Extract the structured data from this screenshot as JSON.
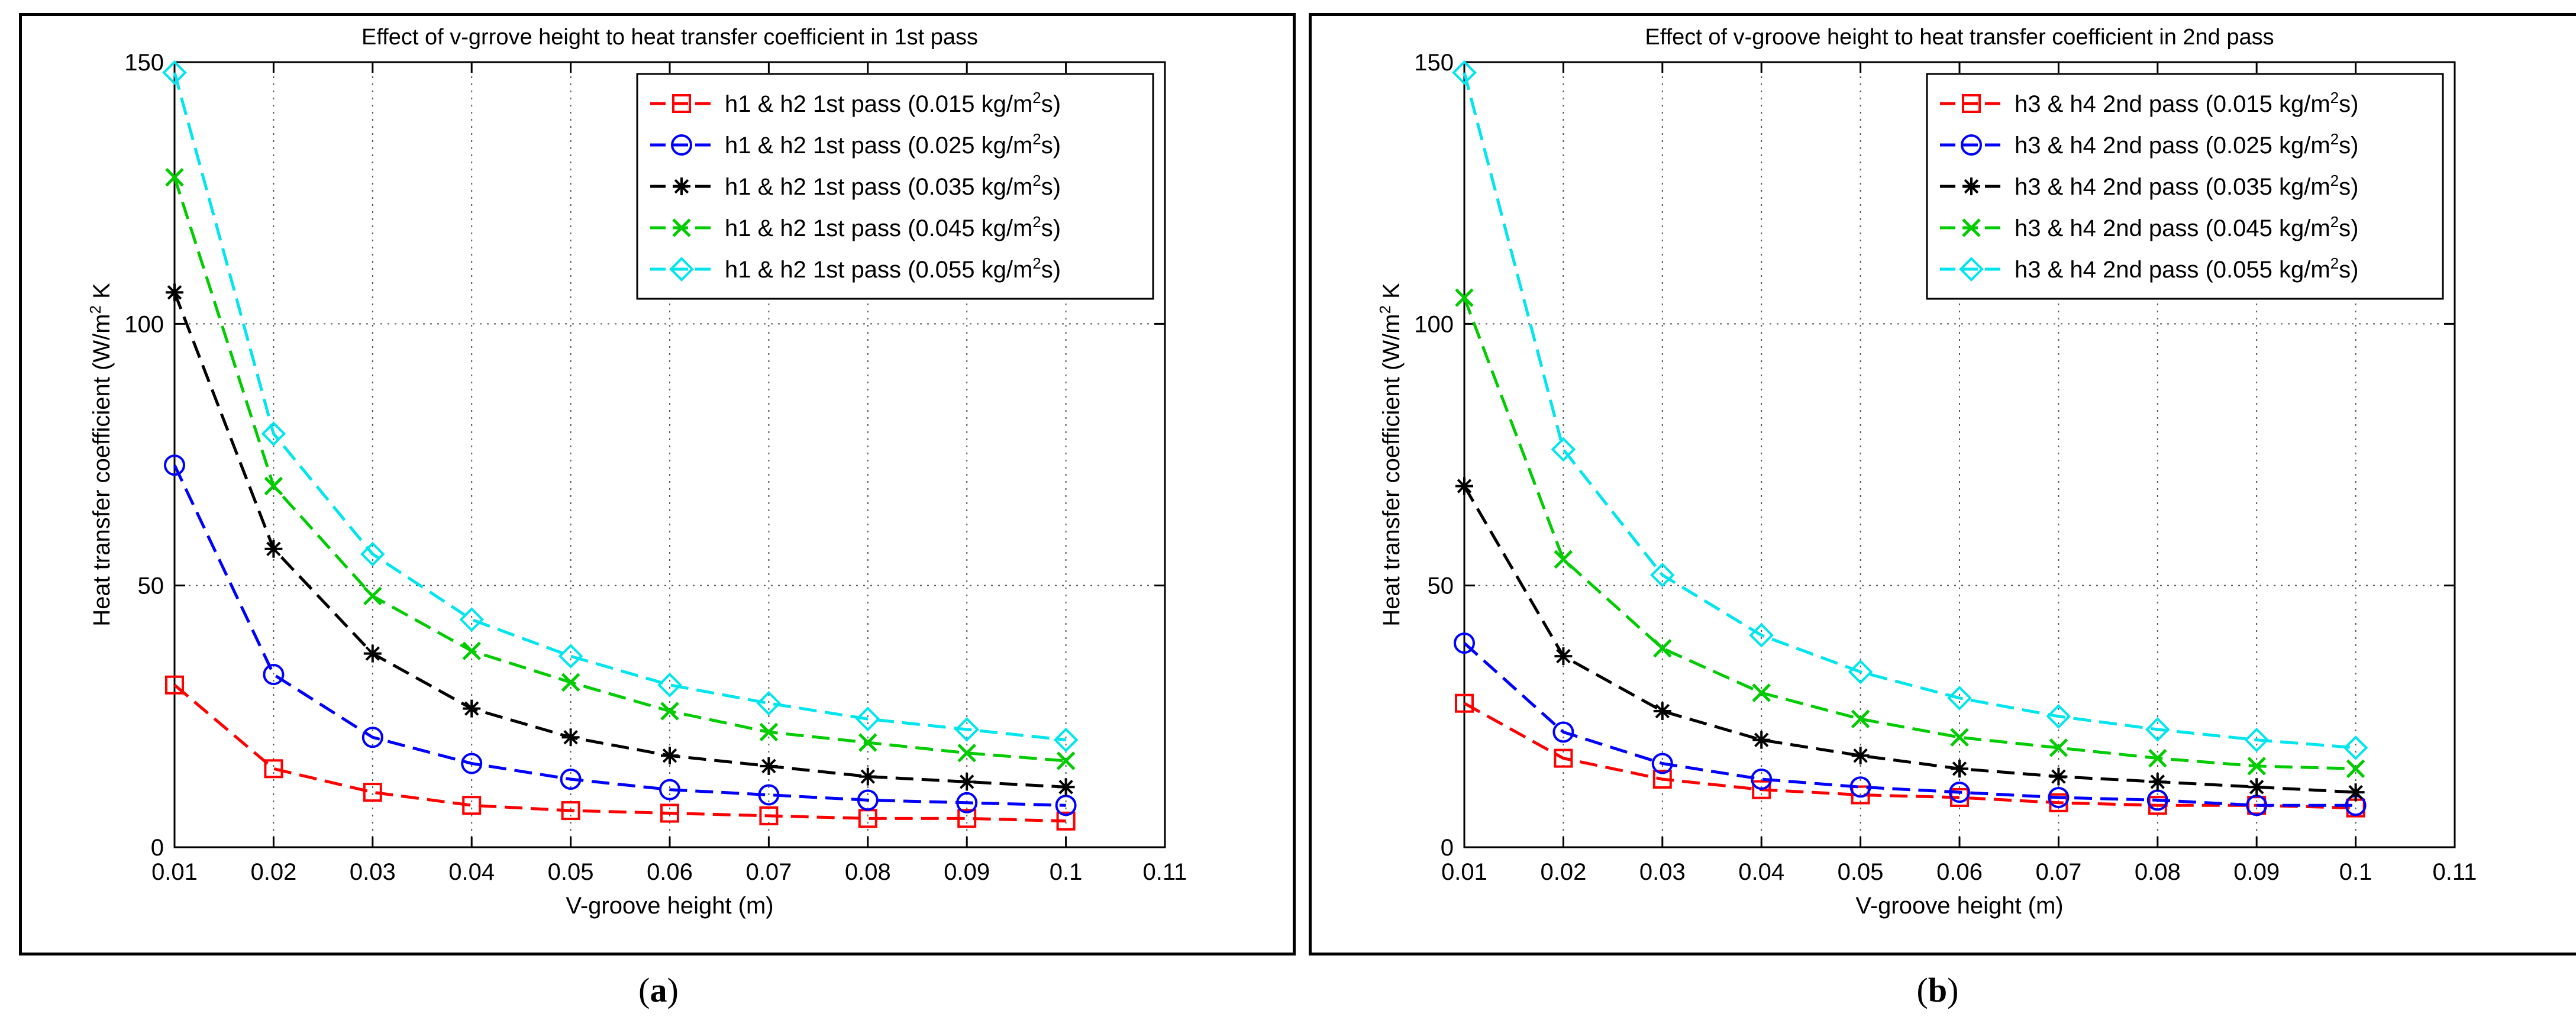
{
  "chart_data": [
    {
      "type": "line",
      "panel_label": "a",
      "title": "Effect of v-grrove height to heat transfer coefficient in 1st pass",
      "xlabel": "V-groove height (m)",
      "ylabel": "Heat transfer coefficient (W/m",
      "ylabel_sup": "2",
      "ylabel_tail": " K",
      "xlim": [
        0.01,
        0.11
      ],
      "ylim": [
        0,
        150
      ],
      "xticks": [
        "0.01",
        "0.02",
        "0.03",
        "0.04",
        "0.05",
        "0.06",
        "0.07",
        "0.08",
        "0.09",
        "0.1",
        "0.11"
      ],
      "yticks": [
        "0",
        "50",
        "100",
        "150"
      ],
      "grid": true,
      "legend_position": "top-right",
      "x": [
        0.01,
        0.02,
        0.03,
        0.04,
        0.05,
        0.06,
        0.07,
        0.08,
        0.09,
        0.1
      ],
      "series": [
        {
          "name": "h1 & h2 1st pass (0.015 kg/m",
          "name_sup": "2",
          "name_tail": "s)",
          "color": "#ff0000",
          "marker": "square",
          "values": [
            31,
            15,
            10.5,
            8,
            7,
            6.5,
            6,
            5.5,
            5.5,
            5
          ]
        },
        {
          "name": "h1 & h2 1st pass (0.025 kg/m",
          "name_sup": "2",
          "name_tail": "s)",
          "color": "#0000ff",
          "marker": "circle",
          "values": [
            73,
            33,
            21,
            16,
            13,
            11,
            10,
            9,
            8.5,
            8
          ]
        },
        {
          "name": "h1 & h2 1st pass (0.035 kg/m",
          "name_sup": "2",
          "name_tail": "s)",
          "color": "#000000",
          "marker": "star",
          "values": [
            106,
            57,
            37,
            26.5,
            21,
            17.5,
            15.5,
            13.5,
            12.5,
            11.5
          ]
        },
        {
          "name": "h1 & h2 1st pass (0.045 kg/m",
          "name_sup": "2",
          "name_tail": "s)",
          "color": "#00cc00",
          "marker": "x",
          "values": [
            128,
            69,
            48,
            37.5,
            31.5,
            26,
            22,
            20,
            18,
            16.5
          ]
        },
        {
          "name": "h1 & h2 1st pass (0.055 kg/m",
          "name_sup": "2",
          "name_tail": "s)",
          "color": "#00e5ee",
          "marker": "diamond",
          "values": [
            148,
            79,
            56,
            43.5,
            36.5,
            31,
            27.5,
            24.5,
            22.5,
            20.5
          ]
        }
      ]
    },
    {
      "type": "line",
      "panel_label": "b",
      "title": "Effect of v-groove height to heat transfer coefficient in 2nd pass",
      "xlabel": "V-groove height (m)",
      "ylabel": "Heat transfer coefficient (W/m",
      "ylabel_sup": "2",
      "ylabel_tail": " K",
      "xlim": [
        0.01,
        0.11
      ],
      "ylim": [
        0,
        150
      ],
      "xticks": [
        "0.01",
        "0.02",
        "0.03",
        "0.04",
        "0.05",
        "0.06",
        "0.07",
        "0.08",
        "0.09",
        "0.1",
        "0.11"
      ],
      "yticks": [
        "0",
        "50",
        "100",
        "150"
      ],
      "grid": true,
      "legend_position": "top-right",
      "x": [
        0.01,
        0.02,
        0.03,
        0.04,
        0.05,
        0.06,
        0.07,
        0.08,
        0.09,
        0.1
      ],
      "series": [
        {
          "name": "h3 & h4 2nd pass (0.015 kg/m",
          "name_sup": "2",
          "name_tail": "s)",
          "color": "#ff0000",
          "marker": "square",
          "values": [
            27.5,
            17,
            13,
            11,
            10,
            9.5,
            8.5,
            8,
            8,
            7.5
          ]
        },
        {
          "name": "h3 & h4 2nd pass (0.025 kg/m",
          "name_sup": "2",
          "name_tail": "s)",
          "color": "#0000ff",
          "marker": "circle",
          "values": [
            39,
            22,
            16,
            13,
            11.5,
            10.5,
            9.5,
            9,
            8,
            8
          ]
        },
        {
          "name": "h3 & h4 2nd pass (0.035 kg/m",
          "name_sup": "2",
          "name_tail": "s)",
          "color": "#000000",
          "marker": "star",
          "values": [
            69,
            36.5,
            26,
            20.5,
            17.5,
            15,
            13.5,
            12.5,
            11.5,
            10.5
          ]
        },
        {
          "name": "h3 & h4 2nd pass (0.045 kg/m",
          "name_sup": "2",
          "name_tail": "s)",
          "color": "#00cc00",
          "marker": "x",
          "values": [
            105,
            55,
            38,
            29.5,
            24.5,
            21,
            19,
            17,
            15.5,
            15
          ]
        },
        {
          "name": "h3 & h4 2nd pass (0.055 kg/m",
          "name_sup": "2",
          "name_tail": "s)",
          "color": "#00e5ee",
          "marker": "diamond",
          "values": [
            148,
            76,
            52,
            40.5,
            33.5,
            28.5,
            25,
            22.5,
            20.5,
            19
          ]
        }
      ]
    }
  ]
}
